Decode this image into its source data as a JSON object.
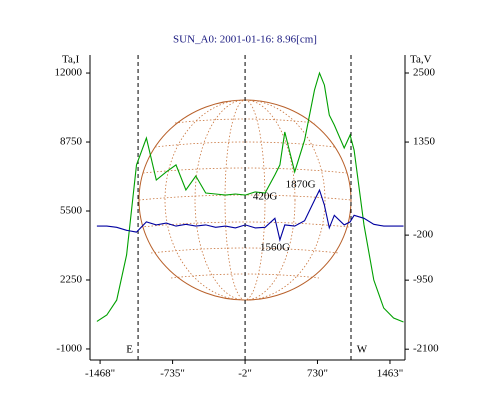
{
  "chart_data": {
    "type": "line",
    "title": "SUN_A0: 2001-01-16: 8.96[cm]",
    "y_label": "Ta,I",
    "y2_label": "Ta,V",
    "x": [
      -1500,
      -1400,
      -1300,
      -1200,
      -1100,
      -1000,
      -900,
      -800,
      -700,
      -600,
      -500,
      -400,
      -300,
      -200,
      -100,
      0,
      100,
      200,
      300,
      350,
      400,
      500,
      600,
      700,
      750,
      800,
      850,
      900,
      1000,
      1060,
      1100,
      1200,
      1300,
      1400,
      1500,
      1600
    ],
    "series": [
      {
        "name": "Ta,I",
        "color": "#00a000",
        "axis": "y",
        "values": [
          300,
          600,
          1300,
          3430,
          7670,
          8940,
          6960,
          7340,
          7670,
          6490,
          7150,
          6350,
          6300,
          6250,
          6300,
          6250,
          6400,
          6350,
          7200,
          7670,
          9220,
          7340,
          8840,
          11200,
          12000,
          11430,
          10020,
          9550,
          8470,
          9080,
          8370,
          4840,
          2250,
          930,
          460,
          270
        ]
      },
      {
        "name": "Ta,V",
        "color": "#0000a0",
        "axis": "y2",
        "values": [
          -50,
          -50,
          -70,
          -120,
          -150,
          20,
          -30,
          0,
          -50,
          -20,
          -50,
          -30,
          -70,
          -50,
          -80,
          -30,
          -80,
          -70,
          80,
          -280,
          -30,
          -50,
          40,
          380,
          550,
          300,
          -80,
          130,
          -30,
          20,
          130,
          80,
          -20,
          -50,
          -50,
          -50
        ]
      }
    ],
    "xlim": [
      -1570,
      1615
    ],
    "xticks": [
      {
        "value": -1468,
        "label": "-1468\""
      },
      {
        "value": -735,
        "label": "-735\""
      },
      {
        "value": -2,
        "label": "-2\""
      },
      {
        "value": 730,
        "label": "730\""
      },
      {
        "value": 1463,
        "label": "1463\""
      }
    ],
    "ylim": [
      -1520,
      12850
    ],
    "yticks": [
      -1000,
      2250,
      5500,
      8750,
      12000
    ],
    "y2lim": [
      -2280,
      2800
    ],
    "y2ticks": [
      -2100,
      -950,
      -200,
      1350,
      2500
    ],
    "vlines": [
      -1084,
      -2,
      1069
    ],
    "annotations": [
      {
        "text": "E",
        "x": -1170,
        "y": -1050
      },
      {
        "text": "W",
        "x": 1180,
        "y": -1050
      },
      {
        "text": "420G",
        "x": 200,
        "y": 6160
      },
      {
        "text": "1870G",
        "x": 560,
        "y": 6720
      },
      {
        "text": "1560G",
        "x": 300,
        "y": 3760
      }
    ],
    "grid": false
  }
}
